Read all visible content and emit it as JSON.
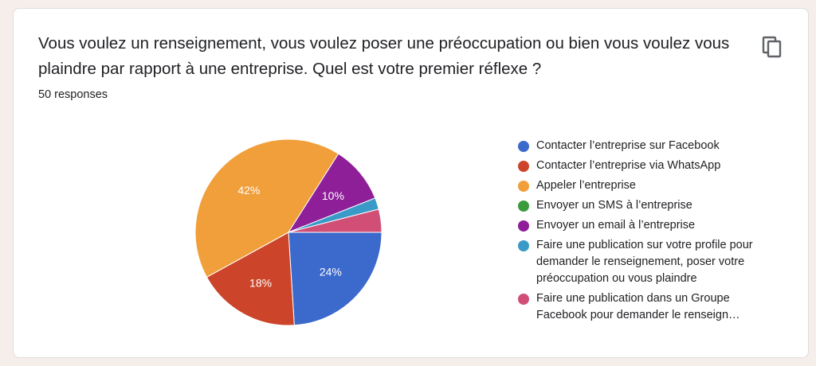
{
  "question": "Vous voulez un renseignement, vous voulez poser une préoccupation ou bien vous voulez vous plaindre par rapport à une entreprise. Quel est votre premier réflexe ?",
  "response_count": "50 responses",
  "copy_icon": "copy-icon",
  "chart_data": {
    "type": "pie",
    "legend_position": "right",
    "slices": [
      {
        "label": "Contacter l’entreprise sur Facebook",
        "value": 24,
        "color": "#3c69cc",
        "data_label": "24%"
      },
      {
        "label": "Contacter l’entreprise via WhatsApp",
        "value": 18,
        "color": "#cc4429",
        "data_label": "18%"
      },
      {
        "label": "Appeler l’entreprise",
        "value": 42,
        "color": "#f19f3a",
        "data_label": "42%"
      },
      {
        "label": "Envoyer un SMS à l’entreprise",
        "value": 0,
        "color": "#3a9a3c",
        "data_label": ""
      },
      {
        "label": "Envoyer un email à l’entreprise",
        "value": 10,
        "color": "#8e1f99",
        "data_label": "10%"
      },
      {
        "label": "Faire une publication sur votre profile pour demander le renseignement, poser votre préoccupation ou vous plaindre",
        "value": 2,
        "color": "#3a9ac7",
        "data_label": ""
      },
      {
        "label": "Faire une publication dans un Groupe Facebook pour demander le renseign…",
        "value": 4,
        "color": "#d14f77",
        "data_label": ""
      }
    ]
  }
}
